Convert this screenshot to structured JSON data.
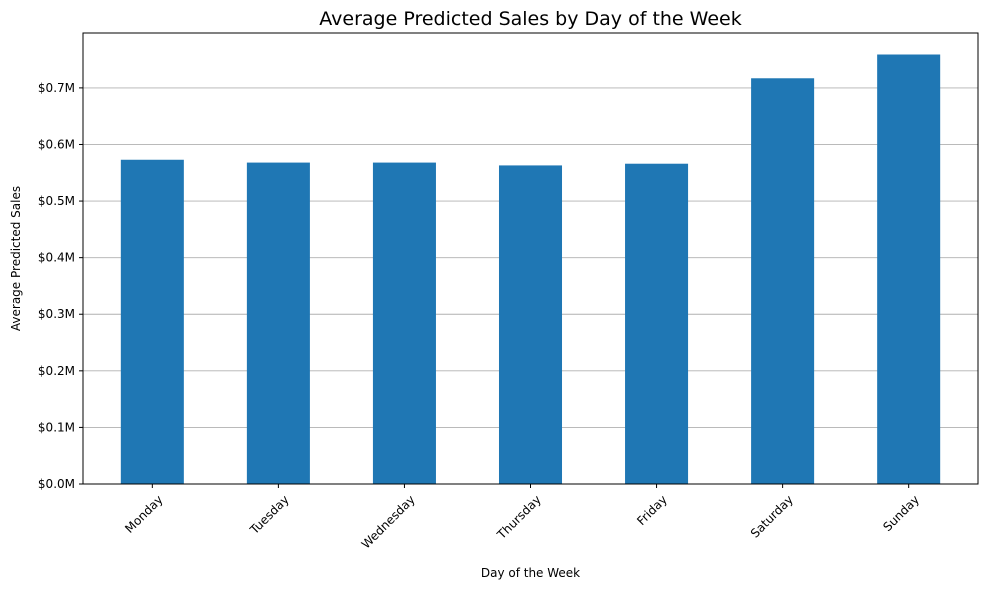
{
  "chart_data": {
    "type": "bar",
    "title": "Average Predicted Sales by Day of the Week",
    "xlabel": "Day of the Week",
    "ylabel": "Average Predicted Sales",
    "categories": [
      "Monday",
      "Tuesday",
      "Wednesday",
      "Thursday",
      "Friday",
      "Saturday",
      "Sunday"
    ],
    "values": [
      573000,
      568000,
      568000,
      563000,
      566000,
      717000,
      759000
    ],
    "ylim": [
      0,
      797000
    ],
    "yticks": [
      0,
      100000,
      200000,
      300000,
      400000,
      500000,
      600000,
      700000
    ],
    "ytick_labels": [
      "$0.0M",
      "$0.1M",
      "$0.2M",
      "$0.3M",
      "$0.4M",
      "$0.5M",
      "$0.6M",
      "$0.7M"
    ],
    "grid": "y-major",
    "bar_color": "#1f77b4",
    "grid_color": "#b0b0b0",
    "legend": "none"
  }
}
